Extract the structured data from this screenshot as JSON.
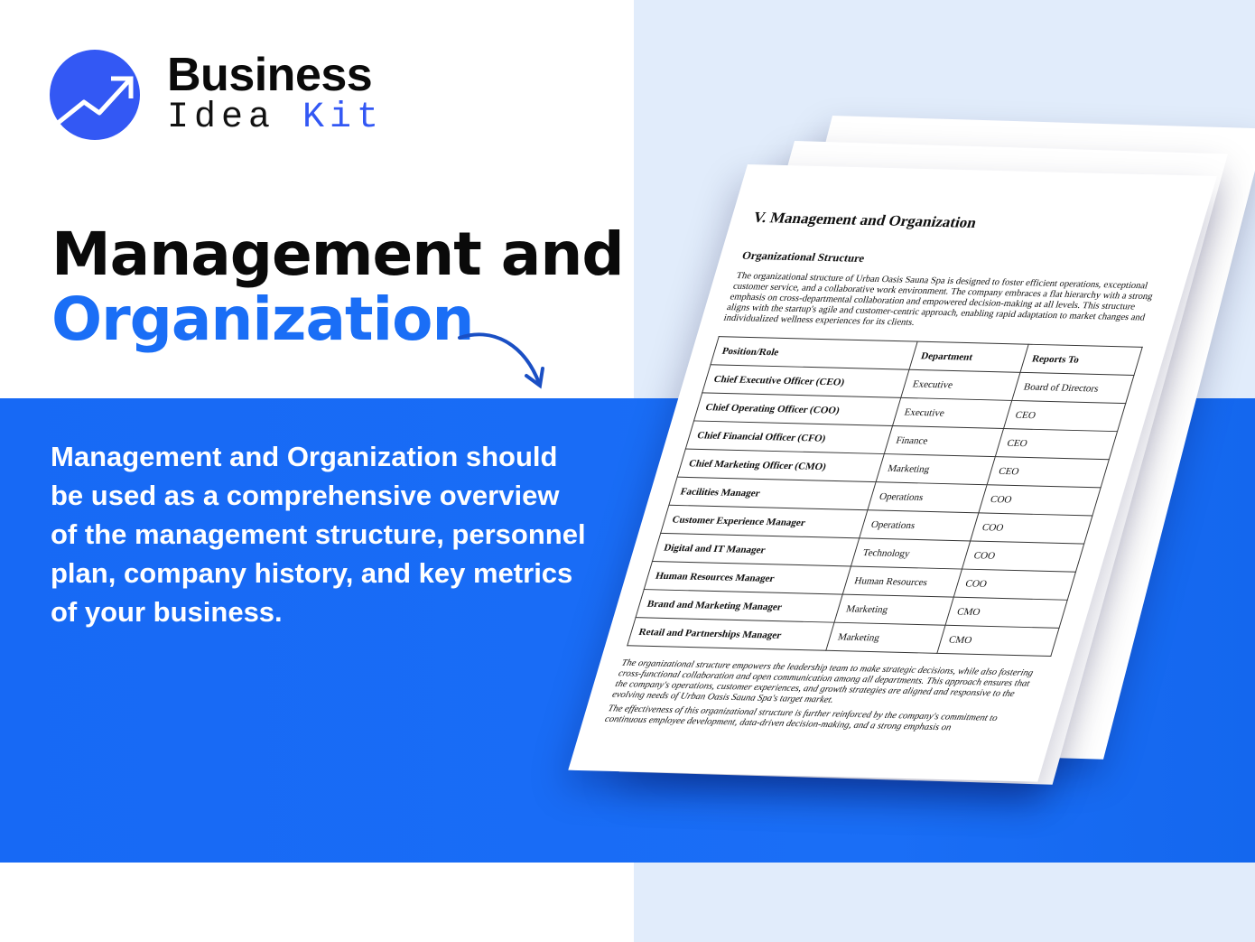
{
  "logo": {
    "line1": "Business",
    "line2a": "Idea",
    "line2b": "Kit",
    "accent": "#3358f4"
  },
  "headline": {
    "line1": "Management and",
    "line2": "Organization"
  },
  "description": "Management and Organization should be used as a comprehensive overview of the management structure, personnel plan, company history, and key metrics of your business.",
  "colors": {
    "band": "#1a6ef6",
    "right_bg": "#e1ecfb"
  },
  "document": {
    "heading": "V. Management and Organization",
    "subheading": "Organizational Structure",
    "paragraph": "The organizational structure of Urban Oasis Sauna Spa is designed to foster efficient operations, exceptional customer service, and a collaborative work environment. The company embraces a flat hierarchy with a strong emphasis on cross-departmental collaboration and empowered decision-making at all levels. This structure aligns with the startup's agile and customer-centric approach, enabling rapid adaptation to market changes and individualized wellness experiences for its clients.",
    "table": {
      "headers": [
        "Position/Role",
        "Department",
        "Reports To"
      ],
      "rows": [
        [
          "Chief Executive Officer (CEO)",
          "Executive",
          "Board of Directors"
        ],
        [
          "Chief Operating Officer (COO)",
          "Executive",
          "CEO"
        ],
        [
          "Chief Financial Officer (CFO)",
          "Finance",
          "CEO"
        ],
        [
          "Chief Marketing Officer (CMO)",
          "Marketing",
          "CEO"
        ],
        [
          "Facilities Manager",
          "Operations",
          "COO"
        ],
        [
          "Customer Experience Manager",
          "Operations",
          "COO"
        ],
        [
          "Digital and IT Manager",
          "Technology",
          "COO"
        ],
        [
          "Human Resources Manager",
          "Human Resources",
          "COO"
        ],
        [
          "Brand and Marketing Manager",
          "Marketing",
          "CMO"
        ],
        [
          "Retail and Partnerships Manager",
          "Marketing",
          "CMO"
        ]
      ]
    },
    "footer1": "The organizational structure empowers the leadership team to make strategic decisions, while also fostering cross-functional collaboration and open communication among all departments. This approach ensures that the company's operations, customer experiences, and growth strategies are aligned and responsive to the evolving needs of Urban Oasis Sauna Spa's target market.",
    "footer2": "The effectiveness of this organizational structure is further reinforced by the company's commitment to continuous employee development, data-driven decision-making, and a strong emphasis on"
  }
}
